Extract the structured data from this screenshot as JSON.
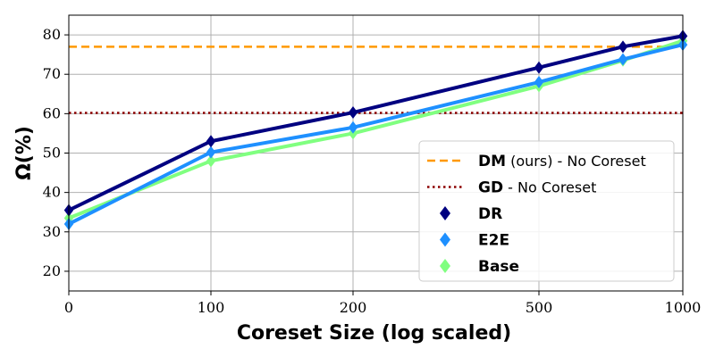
{
  "chart_data": {
    "type": "line",
    "xlabel": "Coreset Size (log scaled)",
    "ylabel": "Ω(%)",
    "x_tick_labels": [
      "0",
      "100",
      "200",
      "500",
      "1000"
    ],
    "y_ticks": [
      20,
      30,
      40,
      50,
      60,
      70,
      80
    ],
    "ylim": [
      15,
      85
    ],
    "x_scale": "log",
    "grid": true,
    "legend_position": "lower-right",
    "x": [
      0,
      100,
      200,
      500,
      750,
      1000
    ],
    "series": [
      {
        "name": "DR",
        "color": "#000080",
        "marker": "diamond",
        "values": [
          35.5,
          53,
          60.3,
          71.7,
          77,
          79.7
        ]
      },
      {
        "name": "E2E",
        "color": "#1e90ff",
        "marker": "diamond",
        "values": [
          32,
          50.2,
          56.5,
          68,
          73.8,
          77.5
        ]
      },
      {
        "name": "Base",
        "color": "#80ff80",
        "marker": "diamond",
        "values": [
          33.5,
          48,
          55,
          67,
          73.5,
          78.5
        ]
      }
    ],
    "reference_lines": [
      {
        "name": "DM",
        "name_suffix": "(ours) - No Coreset",
        "value": 77,
        "color": "#ff9900",
        "style": "dashed"
      },
      {
        "name": "GD",
        "name_suffix": "- No Coreset",
        "value": 60.2,
        "color": "#8b0000",
        "style": "dotted"
      }
    ]
  }
}
